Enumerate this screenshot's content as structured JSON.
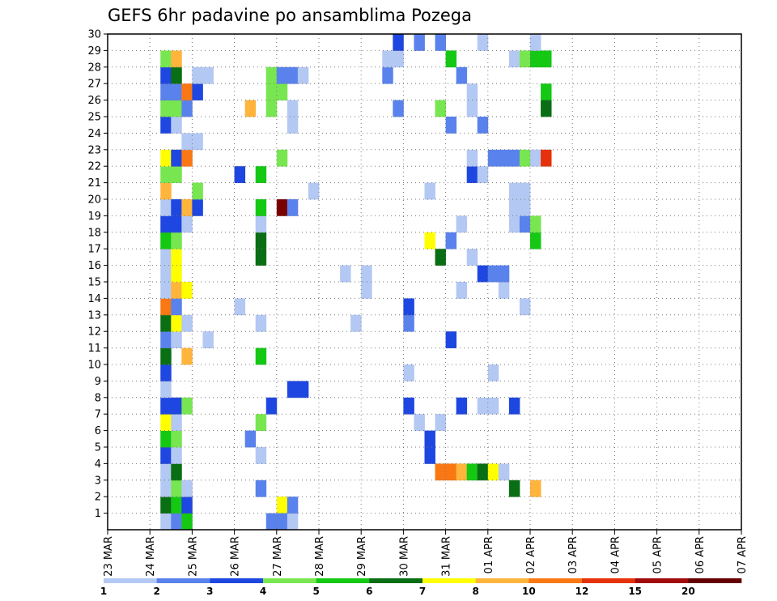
{
  "chart_data": {
    "type": "heatmap",
    "title": "GEFS 6hr padavine po ansamblima Pozega",
    "x_ticks": [
      "23 MAR",
      "24 MAR",
      "25 MAR",
      "26 MAR",
      "27 MAR",
      "28 MAR",
      "29 MAR",
      "30 MAR",
      "31 MAR",
      "01 APR",
      "02 APR",
      "03 APR",
      "04 APR",
      "05 APR",
      "06 APR",
      "07 APR"
    ],
    "y_ticks": [
      1,
      2,
      3,
      4,
      5,
      6,
      7,
      8,
      9,
      10,
      11,
      12,
      13,
      14,
      15,
      16,
      17,
      18,
      19,
      20,
      21,
      22,
      23,
      24,
      25,
      26,
      27,
      28,
      29,
      30
    ],
    "ylim": [
      0,
      30
    ],
    "x_unit": "6-hour step from 23 MAR 00Z",
    "grid": true,
    "legend": {
      "position": "bottom",
      "labels": [
        "1",
        "2",
        "3",
        "4",
        "5",
        "6",
        "7",
        "8",
        "10",
        "12",
        "15",
        "20"
      ],
      "colors": [
        "#b4c8f4",
        "#5a82ec",
        "#1e46e0",
        "#78e650",
        "#14c814",
        "#0a6e14",
        "#ffff00",
        "#ffb43c",
        "#fa7814",
        "#e6320a",
        "#a00a0a",
        "#640000"
      ]
    },
    "cells": [
      [
        5,
        0,
        "#b4c8f4"
      ],
      [
        5,
        1,
        "#0a6e14"
      ],
      [
        5,
        2,
        "#b4c8f4"
      ],
      [
        5,
        3,
        "#b4c8f4"
      ],
      [
        5,
        4,
        "#1e46e0"
      ],
      [
        5,
        5,
        "#14c814"
      ],
      [
        5,
        6,
        "#ffff00"
      ],
      [
        5,
        7,
        "#1e46e0"
      ],
      [
        5,
        8,
        "#b4c8f4"
      ],
      [
        5,
        9,
        "#1e46e0"
      ],
      [
        5,
        10,
        "#0a6e14"
      ],
      [
        5,
        11,
        "#5a82ec"
      ],
      [
        5,
        12,
        "#0a6e14"
      ],
      [
        5,
        13,
        "#fa7814"
      ],
      [
        5,
        14,
        "#b4c8f4"
      ],
      [
        5,
        15,
        "#b4c8f4"
      ],
      [
        5,
        16,
        "#b4c8f4"
      ],
      [
        5,
        17,
        "#14c814"
      ],
      [
        5,
        18,
        "#1e46e0"
      ],
      [
        5,
        19,
        "#b4c8f4"
      ],
      [
        5,
        20,
        "#ffb43c"
      ],
      [
        5,
        21,
        "#78e650"
      ],
      [
        5,
        22,
        "#ffff00"
      ],
      [
        5,
        24,
        "#1e46e0"
      ],
      [
        5,
        25,
        "#78e650"
      ],
      [
        5,
        26,
        "#5a82ec"
      ],
      [
        5,
        27,
        "#1e46e0"
      ],
      [
        5,
        28,
        "#78e650"
      ],
      [
        6,
        0,
        "#5a82ec"
      ],
      [
        6,
        1,
        "#14c814"
      ],
      [
        6,
        2,
        "#78e650"
      ],
      [
        6,
        3,
        "#0a6e14"
      ],
      [
        6,
        4,
        "#b4c8f4"
      ],
      [
        6,
        5,
        "#78e650"
      ],
      [
        6,
        6,
        "#b4c8f4"
      ],
      [
        6,
        7,
        "#1e46e0"
      ],
      [
        6,
        11,
        "#b4c8f4"
      ],
      [
        6,
        12,
        "#ffff00"
      ],
      [
        6,
        13,
        "#5a82ec"
      ],
      [
        6,
        14,
        "#ffb43c"
      ],
      [
        6,
        15,
        "#ffff00"
      ],
      [
        6,
        16,
        "#ffff00"
      ],
      [
        6,
        17,
        "#78e650"
      ],
      [
        6,
        18,
        "#1e46e0"
      ],
      [
        6,
        19,
        "#1e46e0"
      ],
      [
        6,
        21,
        "#78e650"
      ],
      [
        6,
        22,
        "#1e46e0"
      ],
      [
        6,
        24,
        "#b4c8f4"
      ],
      [
        6,
        25,
        "#78e650"
      ],
      [
        6,
        26,
        "#5a82ec"
      ],
      [
        6,
        27,
        "#0a6e14"
      ],
      [
        6,
        28,
        "#ffb43c"
      ],
      [
        7,
        0,
        "#14c814"
      ],
      [
        7,
        1,
        "#1e46e0"
      ],
      [
        7,
        2,
        "#b4c8f4"
      ],
      [
        7,
        7,
        "#78e650"
      ],
      [
        7,
        10,
        "#ffb43c"
      ],
      [
        7,
        12,
        "#b4c8f4"
      ],
      [
        7,
        14,
        "#ffff00"
      ],
      [
        7,
        18,
        "#b4c8f4"
      ],
      [
        7,
        19,
        "#ffb43c"
      ],
      [
        7,
        22,
        "#fa7814"
      ],
      [
        7,
        23,
        "#b4c8f4"
      ],
      [
        7,
        25,
        "#5a82ec"
      ],
      [
        7,
        26,
        "#fa7814"
      ],
      [
        8,
        19,
        "#1e46e0"
      ],
      [
        8,
        20,
        "#78e650"
      ],
      [
        8,
        23,
        "#b4c8f4"
      ],
      [
        8,
        26,
        "#1e46e0"
      ],
      [
        8,
        27,
        "#b4c8f4"
      ],
      [
        9,
        11,
        "#b4c8f4"
      ],
      [
        9,
        27,
        "#b4c8f4"
      ],
      [
        12,
        13,
        "#b4c8f4"
      ],
      [
        12,
        21,
        "#1e46e0"
      ],
      [
        13,
        5,
        "#5a82ec"
      ],
      [
        13,
        25,
        "#ffb43c"
      ],
      [
        14,
        2,
        "#5a82ec"
      ],
      [
        14,
        4,
        "#b4c8f4"
      ],
      [
        14,
        6,
        "#78e650"
      ],
      [
        14,
        10,
        "#14c814"
      ],
      [
        14,
        12,
        "#b4c8f4"
      ],
      [
        14,
        16,
        "#0a6e14"
      ],
      [
        14,
        17,
        "#0a6e14"
      ],
      [
        14,
        18,
        "#b4c8f4"
      ],
      [
        14,
        19,
        "#14c814"
      ],
      [
        14,
        21,
        "#14c814"
      ],
      [
        15,
        0,
        "#5a82ec"
      ],
      [
        15,
        7,
        "#1e46e0"
      ],
      [
        15,
        25,
        "#78e650"
      ],
      [
        15,
        26,
        "#78e650"
      ],
      [
        15,
        27,
        "#78e650"
      ],
      [
        16,
        1,
        "#ffff00"
      ],
      [
        16,
        0,
        "#5a82ec"
      ],
      [
        16,
        19,
        "#7a0000"
      ],
      [
        16,
        22,
        "#78e650"
      ],
      [
        16,
        26,
        "#78e650"
      ],
      [
        16,
        27,
        "#5a82ec"
      ],
      [
        17,
        0,
        "#b4c8f4"
      ],
      [
        17,
        1,
        "#5a82ec"
      ],
      [
        17,
        8,
        "#1e46e0"
      ],
      [
        17,
        19,
        "#5a82ec"
      ],
      [
        17,
        24,
        "#b4c8f4"
      ],
      [
        17,
        25,
        "#b4c8f4"
      ],
      [
        17,
        27,
        "#5a82ec"
      ],
      [
        18,
        8,
        "#1e46e0"
      ],
      [
        18,
        27,
        "#b4c8f4"
      ],
      [
        19,
        20,
        "#b4c8f4"
      ],
      [
        22,
        15,
        "#b4c8f4"
      ],
      [
        23,
        12,
        "#b4c8f4"
      ],
      [
        24,
        15,
        "#b4c8f4"
      ],
      [
        24,
        14,
        "#b4c8f4"
      ],
      [
        26,
        27,
        "#5a82ec"
      ],
      [
        26,
        28,
        "#b4c8f4"
      ],
      [
        27,
        28,
        "#b4c8f4"
      ],
      [
        27,
        29,
        "#1e46e0"
      ],
      [
        27,
        25,
        "#5a82ec"
      ],
      [
        28,
        7,
        "#1e46e0"
      ],
      [
        28,
        9,
        "#b4c8f4"
      ],
      [
        28,
        12,
        "#5a82ec"
      ],
      [
        28,
        13,
        "#1e46e0"
      ],
      [
        29,
        29,
        "#5a82ec"
      ],
      [
        29,
        6,
        "#b4c8f4"
      ],
      [
        30,
        4,
        "#1e46e0"
      ],
      [
        30,
        5,
        "#1e46e0"
      ],
      [
        30,
        17,
        "#ffff00"
      ],
      [
        30,
        20,
        "#b4c8f4"
      ],
      [
        31,
        3,
        "#fa7814"
      ],
      [
        31,
        6,
        "#b4c8f4"
      ],
      [
        31,
        16,
        "#0a6e14"
      ],
      [
        31,
        25,
        "#78e650"
      ],
      [
        31,
        29,
        "#5a82ec"
      ],
      [
        32,
        3,
        "#fa7814"
      ],
      [
        32,
        11,
        "#1e46e0"
      ],
      [
        32,
        17,
        "#5a82ec"
      ],
      [
        32,
        24,
        "#5a82ec"
      ],
      [
        32,
        28,
        "#14c814"
      ],
      [
        33,
        3,
        "#ffb43c"
      ],
      [
        33,
        7,
        "#1e46e0"
      ],
      [
        33,
        14,
        "#b4c8f4"
      ],
      [
        33,
        18,
        "#b4c8f4"
      ],
      [
        33,
        27,
        "#5a82ec"
      ],
      [
        34,
        3,
        "#14c814"
      ],
      [
        34,
        26,
        "#b4c8f4"
      ],
      [
        34,
        25,
        "#b4c8f4"
      ],
      [
        34,
        21,
        "#1e46e0"
      ],
      [
        34,
        16,
        "#b4c8f4"
      ],
      [
        34,
        22,
        "#b4c8f4"
      ],
      [
        35,
        3,
        "#0a6e14"
      ],
      [
        35,
        7,
        "#b4c8f4"
      ],
      [
        35,
        15,
        "#1e46e0"
      ],
      [
        35,
        21,
        "#b4c8f4"
      ],
      [
        35,
        24,
        "#5a82ec"
      ],
      [
        35,
        29,
        "#b4c8f4"
      ],
      [
        36,
        3,
        "#ffff00"
      ],
      [
        36,
        7,
        "#b4c8f4"
      ],
      [
        36,
        9,
        "#b4c8f4"
      ],
      [
        36,
        15,
        "#5a82ec"
      ],
      [
        36,
        22,
        "#5a82ec"
      ],
      [
        37,
        3,
        "#b4c8f4"
      ],
      [
        37,
        14,
        "#b4c8f4"
      ],
      [
        37,
        15,
        "#5a82ec"
      ],
      [
        37,
        22,
        "#5a82ec"
      ],
      [
        38,
        2,
        "#0a6e14"
      ],
      [
        38,
        7,
        "#1e46e0"
      ],
      [
        38,
        18,
        "#b4c8f4"
      ],
      [
        38,
        19,
        "#b4c8f4"
      ],
      [
        38,
        20,
        "#b4c8f4"
      ],
      [
        38,
        22,
        "#5a82ec"
      ],
      [
        38,
        28,
        "#b4c8f4"
      ],
      [
        39,
        13,
        "#b4c8f4"
      ],
      [
        39,
        18,
        "#5a82ec"
      ],
      [
        39,
        19,
        "#b4c8f4"
      ],
      [
        39,
        20,
        "#b4c8f4"
      ],
      [
        39,
        22,
        "#78e650"
      ],
      [
        39,
        28,
        "#78e650"
      ],
      [
        40,
        2,
        "#ffb43c"
      ],
      [
        40,
        17,
        "#14c814"
      ],
      [
        40,
        18,
        "#78e650"
      ],
      [
        40,
        22,
        "#b4c8f4"
      ],
      [
        40,
        28,
        "#14c814"
      ],
      [
        40,
        29,
        "#b4c8f4"
      ],
      [
        41,
        22,
        "#e6320a"
      ],
      [
        41,
        26,
        "#14c814"
      ],
      [
        41,
        25,
        "#0a6e14"
      ],
      [
        41,
        28,
        "#14c814"
      ]
    ]
  }
}
